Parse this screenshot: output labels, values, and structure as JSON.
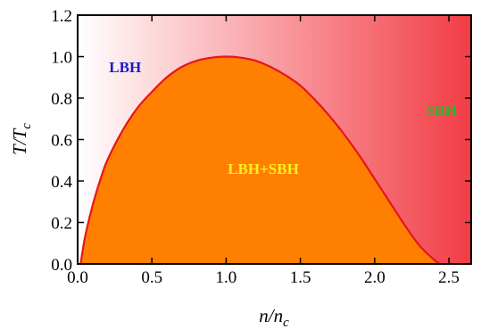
{
  "chart_data": {
    "type": "area",
    "title": "",
    "xlabel": "n/n",
    "xlabel_sub": "c",
    "ylabel": "T/T",
    "ylabel_sub": "c",
    "xlim": [
      0.0,
      2.65
    ],
    "ylim": [
      0.0,
      1.2
    ],
    "xticks": [
      "0.0",
      "0.5",
      "1.0",
      "1.5",
      "2.0",
      "2.5"
    ],
    "yticks": [
      "0.0",
      "0.2",
      "0.4",
      "0.6",
      "0.8",
      "1.0",
      "1.2"
    ],
    "grid": false,
    "coexistence_curve": {
      "x": [
        0.02,
        0.05,
        0.1,
        0.15,
        0.2,
        0.3,
        0.4,
        0.5,
        0.6,
        0.7,
        0.8,
        0.9,
        1.0,
        1.1,
        1.2,
        1.3,
        1.4,
        1.5,
        1.6,
        1.7,
        1.8,
        1.9,
        2.0,
        2.1,
        2.2,
        2.3,
        2.4,
        2.44
      ],
      "y": [
        0.0,
        0.13,
        0.28,
        0.4,
        0.5,
        0.64,
        0.75,
        0.83,
        0.9,
        0.95,
        0.98,
        0.995,
        1.0,
        0.995,
        0.98,
        0.95,
        0.91,
        0.86,
        0.79,
        0.71,
        0.62,
        0.52,
        0.41,
        0.3,
        0.19,
        0.09,
        0.02,
        0.0
      ]
    },
    "regions": [
      {
        "label": "LBH",
        "x": 0.32,
        "y": 0.95,
        "color": "#1a1acc"
      },
      {
        "label": "SBH",
        "x": 2.45,
        "y": 0.745,
        "color": "#2db52d"
      },
      {
        "label": "LBH+SBH",
        "x": 1.25,
        "y": 0.46,
        "color": "#ffee22"
      }
    ],
    "colors": {
      "fill": "#ff8000",
      "curve": "#e8141c",
      "background_start": "#ffffff",
      "background_end": "#f23c45"
    }
  }
}
